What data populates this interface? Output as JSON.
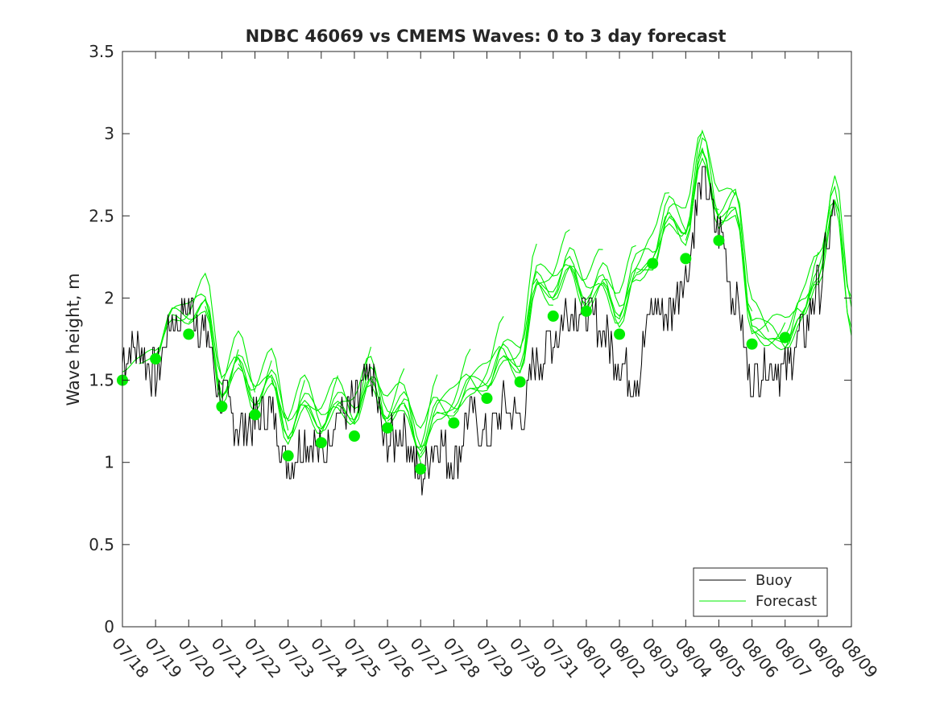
{
  "chart_data": {
    "type": "line",
    "title": "NDBC 46069 vs CMEMS Waves: 0 to 3 day forecast",
    "xlabel": "",
    "ylabel": "Wave height, m",
    "ylim": [
      0,
      3.5
    ],
    "yticks": [
      "0",
      "0.5",
      "1",
      "1.5",
      "2",
      "2.5",
      "3",
      "3.5"
    ],
    "xlim": [
      "07/18",
      "08/09"
    ],
    "xticks": [
      "07/18",
      "07/19",
      "07/20",
      "07/21",
      "07/22",
      "07/23",
      "07/24",
      "07/25",
      "07/26",
      "07/27",
      "07/28",
      "07/29",
      "07/30",
      "07/31",
      "08/01",
      "08/02",
      "08/03",
      "08/04",
      "08/05",
      "08/06",
      "08/07",
      "08/08",
      "08/09"
    ],
    "legend": {
      "placement": "bottom-right",
      "entries": [
        "Buoy",
        "Forecast"
      ]
    },
    "colors": {
      "buoy": "#000000",
      "forecast": "#00ee00",
      "markers": "#00ee00"
    },
    "grid": false,
    "series": [
      {
        "name": "Buoy",
        "x": [
          "07/18",
          "07/18 12h",
          "07/19",
          "07/19 12h",
          "07/20",
          "07/20 12h",
          "07/21",
          "07/21 12h",
          "07/22",
          "07/22 12h",
          "07/23",
          "07/23 12h",
          "07/24",
          "07/24 12h",
          "07/25",
          "07/25 12h",
          "07/26",
          "07/26 12h",
          "07/27",
          "07/27 12h",
          "07/28",
          "07/28 12h",
          "07/29",
          "07/29 12h",
          "07/30",
          "07/30 12h",
          "07/31",
          "07/31 12h",
          "08/01",
          "08/01 12h",
          "08/02",
          "08/02 12h",
          "08/03",
          "08/03 12h",
          "08/04",
          "08/04 12h",
          "08/05",
          "08/05 12h",
          "08/06",
          "08/06 12h",
          "08/07",
          "08/07 12h",
          "08/08",
          "08/08 12h"
        ],
        "values": [
          1.65,
          1.7,
          1.55,
          1.85,
          1.95,
          1.8,
          1.4,
          1.2,
          1.25,
          1.3,
          1.0,
          1.15,
          1.05,
          1.3,
          1.35,
          1.5,
          1.1,
          1.2,
          0.9,
          1.15,
          1.0,
          1.3,
          1.15,
          1.35,
          1.25,
          1.6,
          1.75,
          1.95,
          1.9,
          1.8,
          1.6,
          1.5,
          1.95,
          1.9,
          2.15,
          2.7,
          2.4,
          2.0,
          1.5,
          1.6,
          1.55,
          1.8,
          2.05,
          2.5
        ]
      },
      {
        "name": "Forecast",
        "x": [
          "07/18",
          "07/18 12h",
          "07/19",
          "07/19 12h",
          "07/20",
          "07/20 12h",
          "07/21",
          "07/21 12h",
          "07/22",
          "07/22 12h",
          "07/23",
          "07/23 12h",
          "07/24",
          "07/24 12h",
          "07/25",
          "07/25 12h",
          "07/26",
          "07/26 12h",
          "07/27",
          "07/27 12h",
          "07/28",
          "07/28 12h",
          "07/29",
          "07/29 12h",
          "07/30",
          "07/30 12h",
          "07/31",
          "07/31 12h",
          "08/01",
          "08/01 12h",
          "08/02",
          "08/02 12h",
          "08/03",
          "08/03 12h",
          "08/04",
          "08/04 12h",
          "08/05",
          "08/05 12h",
          "08/06",
          "08/06 12h",
          "08/07",
          "08/07 12h",
          "08/08",
          "08/08 12h",
          "08/09"
        ],
        "values": [
          1.55,
          1.6,
          1.65,
          1.9,
          1.85,
          1.95,
          1.4,
          1.6,
          1.35,
          1.5,
          1.15,
          1.35,
          1.2,
          1.35,
          1.25,
          1.5,
          1.25,
          1.35,
          1.05,
          1.3,
          1.3,
          1.45,
          1.45,
          1.65,
          1.55,
          2.1,
          2.0,
          2.2,
          1.95,
          2.1,
          1.85,
          2.15,
          2.2,
          2.5,
          2.35,
          2.9,
          2.45,
          2.55,
          1.8,
          1.75,
          1.7,
          1.9,
          2.1,
          2.6,
          1.8
        ]
      }
    ],
    "markers": {
      "name": "Forecast analysis points",
      "x": [
        "07/18",
        "07/19",
        "07/20",
        "07/21",
        "07/22",
        "07/23",
        "07/24",
        "07/25",
        "07/26",
        "07/27",
        "07/28",
        "07/29",
        "07/30",
        "07/31",
        "08/01",
        "08/02",
        "08/03",
        "08/04",
        "08/05",
        "08/06",
        "08/07"
      ],
      "values": [
        1.5,
        1.63,
        1.78,
        1.34,
        1.29,
        1.04,
        1.12,
        1.16,
        1.21,
        0.96,
        1.24,
        1.39,
        1.49,
        1.89,
        1.92,
        1.78,
        2.21,
        2.24,
        2.35,
        1.72,
        1.76
      ]
    }
  }
}
